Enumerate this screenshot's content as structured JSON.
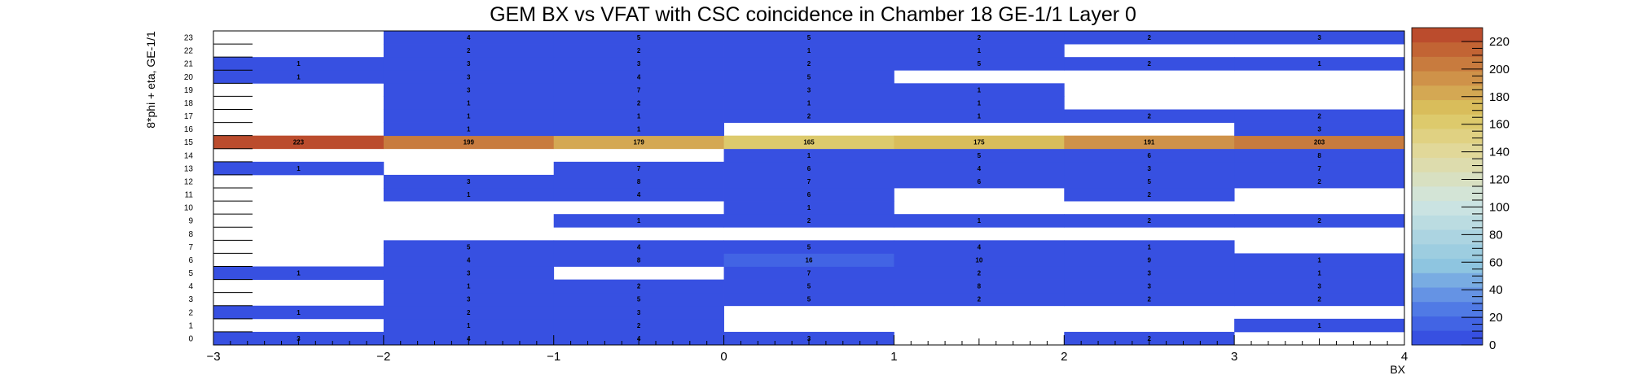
{
  "chart_data": {
    "type": "heatmap",
    "title": "GEM BX vs VFAT with CSC coincidence in Chamber 18 GE-1/1 Layer 0",
    "xlabel": "BX",
    "ylabel": "8*phi + eta, GE-1/1",
    "xlim": [
      -3,
      4
    ],
    "ylim": [
      0,
      24
    ],
    "zlim": [
      0,
      230
    ],
    "x_bins": [
      -2.5,
      -1.5,
      -0.5,
      0.5,
      1.5,
      2.5,
      3.5
    ],
    "x_tick_labels": [
      "−3",
      "−2",
      "−1",
      "0",
      "1",
      "2",
      "3",
      "4"
    ],
    "y_tick_labels": [
      "0",
      "1",
      "2",
      "3",
      "4",
      "5",
      "6",
      "7",
      "8",
      "9",
      "10",
      "11",
      "12",
      "13",
      "14",
      "15",
      "16",
      "17",
      "18",
      "19",
      "20",
      "21",
      "22",
      "23"
    ],
    "z_tick_labels": [
      "0",
      "20",
      "40",
      "60",
      "80",
      "100",
      "120",
      "140",
      "160",
      "180",
      "200",
      "220"
    ],
    "colors": {
      "low": "#3246e0",
      "mid": "#d8e6e3",
      "high": "#b8402a"
    },
    "values": [
      [
        3,
        4,
        4,
        3,
        null,
        2,
        null
      ],
      [
        null,
        1,
        2,
        null,
        null,
        null,
        1
      ],
      [
        1,
        2,
        3,
        null,
        null,
        null,
        null
      ],
      [
        null,
        3,
        5,
        5,
        2,
        2,
        2
      ],
      [
        null,
        1,
        2,
        5,
        8,
        3,
        3
      ],
      [
        1,
        3,
        null,
        7,
        2,
        3,
        1
      ],
      [
        null,
        4,
        8,
        16,
        10,
        9,
        1
      ],
      [
        null,
        5,
        4,
        5,
        4,
        1,
        null
      ],
      [
        null,
        null,
        null,
        null,
        null,
        null,
        null
      ],
      [
        null,
        null,
        1,
        2,
        1,
        2,
        2
      ],
      [
        null,
        null,
        null,
        1,
        null,
        null,
        null
      ],
      [
        null,
        1,
        4,
        6,
        null,
        2,
        null
      ],
      [
        null,
        3,
        8,
        7,
        6,
        5,
        2
      ],
      [
        1,
        null,
        7,
        6,
        4,
        3,
        7
      ],
      [
        null,
        null,
        null,
        1,
        5,
        6,
        8
      ],
      [
        223,
        199,
        179,
        165,
        175,
        191,
        203
      ],
      [
        null,
        1,
        1,
        null,
        null,
        null,
        3
      ],
      [
        null,
        1,
        1,
        2,
        1,
        2,
        2
      ],
      [
        null,
        1,
        2,
        1,
        1,
        null,
        null
      ],
      [
        null,
        3,
        7,
        3,
        1,
        null,
        null
      ],
      [
        1,
        3,
        4,
        5,
        null,
        null,
        null
      ],
      [
        1,
        3,
        3,
        2,
        5,
        2,
        1
      ],
      [
        null,
        2,
        2,
        1,
        1,
        null,
        null
      ],
      [
        null,
        4,
        5,
        5,
        2,
        2,
        3
      ]
    ]
  }
}
